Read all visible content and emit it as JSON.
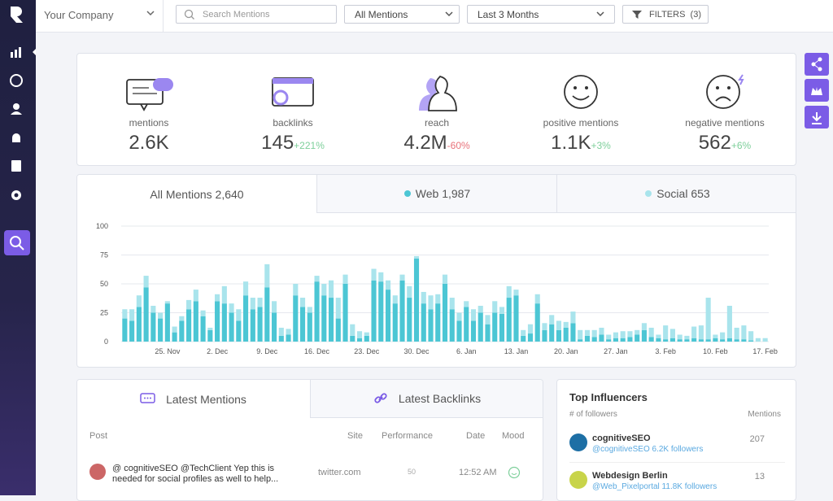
{
  "topbar": {
    "company": "Your Company",
    "search_placeholder": "Search Mentions",
    "mention_filter": "All Mentions",
    "period": "Last 3 Months",
    "filters": "FILTERS",
    "filters_count": "(3)"
  },
  "stats": [
    {
      "label": "mentions",
      "value": "2.6K"
    },
    {
      "label": "backlinks",
      "value": "145",
      "change": "+221%"
    },
    {
      "label": "reach",
      "value": "4.2M",
      "change": "-60%"
    },
    {
      "label": "positive mentions",
      "value": "1.1K",
      "change": "+3%"
    },
    {
      "label": "negative mentions",
      "value": "562",
      "change": "+6%"
    }
  ],
  "tabs": [
    {
      "label": "All Mentions",
      "count": "2,640"
    },
    {
      "label": "Web",
      "count": "1,987"
    },
    {
      "label": "Social",
      "count": "653"
    }
  ],
  "chart_data": {
    "type": "stacked_bar",
    "categories": [
      null,
      null,
      null,
      null,
      null,
      null,
      "25. Nov",
      null,
      null,
      null,
      null,
      null,
      null,
      "2. Dec",
      null,
      null,
      null,
      null,
      null,
      null,
      "9. Dec",
      null,
      null,
      null,
      null,
      null,
      null,
      "16. Dec",
      null,
      null,
      null,
      null,
      null,
      null,
      "23. Dec",
      null,
      null,
      null,
      null,
      null,
      null,
      "30. Dec",
      null,
      null,
      null,
      null,
      null,
      null,
      "6. Jan",
      null,
      null,
      null,
      null,
      null,
      null,
      "13. Jan",
      null,
      null,
      null,
      null,
      null,
      null,
      "20. Jan",
      null,
      null,
      null,
      null,
      null,
      null,
      "27. Jan",
      null,
      null,
      null,
      null,
      null,
      null,
      "3. Feb",
      null,
      null,
      null,
      null,
      null,
      null,
      "10. Feb",
      null,
      null,
      null,
      null,
      null,
      null,
      "17. Feb"
    ],
    "series": [
      {
        "name": "Web",
        "color": "#4cc6d4",
        "values": [
          20,
          18,
          30,
          47,
          25,
          20,
          33,
          8,
          18,
          28,
          35,
          22,
          10,
          35,
          33,
          25,
          18,
          40,
          28,
          30,
          47,
          25,
          5,
          6,
          40,
          30,
          25,
          52,
          40,
          38,
          20,
          50,
          5,
          3,
          5,
          53,
          52,
          45,
          33,
          53,
          38,
          72,
          33,
          28,
          33,
          50,
          28,
          18,
          30,
          18,
          25,
          15,
          25,
          24,
          38,
          40,
          5,
          7,
          33,
          10,
          15,
          10,
          12,
          16,
          2,
          5,
          4,
          6,
          2,
          3,
          3,
          4,
          6,
          10,
          4,
          3,
          2,
          3,
          2,
          2,
          3,
          2,
          2,
          3,
          2,
          3,
          2,
          2,
          1,
          0,
          0
        ]
      },
      {
        "name": "Social",
        "color": "#a9e4ec",
        "values": [
          8,
          10,
          10,
          10,
          6,
          5,
          2,
          5,
          4,
          8,
          10,
          5,
          2,
          6,
          15,
          8,
          10,
          12,
          10,
          8,
          20,
          10,
          7,
          5,
          10,
          8,
          5,
          5,
          10,
          15,
          18,
          8,
          10,
          6,
          3,
          10,
          8,
          8,
          7,
          5,
          10,
          2,
          10,
          12,
          8,
          8,
          10,
          7,
          5,
          10,
          6,
          8,
          10,
          6,
          10,
          5,
          5,
          8,
          8,
          6,
          8,
          8,
          5,
          10,
          8,
          5,
          6,
          6,
          4,
          5,
          6,
          5,
          4,
          6,
          8,
          3,
          12,
          8,
          4,
          3,
          10,
          12,
          36,
          3,
          6,
          28,
          10,
          12,
          8,
          3,
          3
        ]
      }
    ],
    "ylim": [
      0,
      100
    ],
    "yticks": [
      0,
      25,
      50,
      75,
      100
    ],
    "grid": true
  },
  "mentions_panel": {
    "tabs": [
      "Latest Mentions",
      "Latest Backlinks"
    ],
    "columns": [
      "Post",
      "Site",
      "Performance",
      "Date",
      "Mood"
    ],
    "rows": [
      {
        "post_line1": "@ cognitiveSEO @TechClient Yep this is",
        "post_line2": "needed for social profiles as well to help...",
        "site": "twitter.com",
        "performance": "50",
        "date": "12:52 AM"
      }
    ]
  },
  "influencers": {
    "title": "Top Influencers",
    "followers_label": "# of followers",
    "mentions_label": "Mentions",
    "rows": [
      {
        "name": "cognitiveSEO",
        "handle": "@cognitiveSEO 6.2K followers",
        "mentions": "207"
      },
      {
        "name": "Webdesign Berlin",
        "handle": "@Web_Pixelportal 11.8K followers",
        "mentions": "13"
      }
    ]
  }
}
